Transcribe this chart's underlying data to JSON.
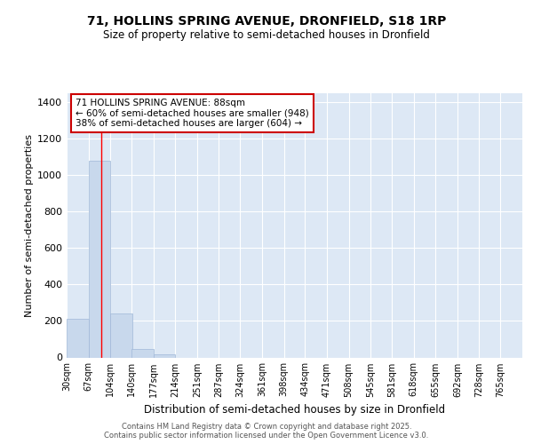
{
  "title1": "71, HOLLINS SPRING AVENUE, DRONFIELD, S18 1RP",
  "title2": "Size of property relative to semi-detached houses in Dronfield",
  "xlabel": "Distribution of semi-detached houses by size in Dronfield",
  "ylabel": "Number of semi-detached properties",
  "bin_labels": [
    "30sqm",
    "67sqm",
    "104sqm",
    "140sqm",
    "177sqm",
    "214sqm",
    "251sqm",
    "287sqm",
    "324sqm",
    "361sqm",
    "398sqm",
    "434sqm",
    "471sqm",
    "508sqm",
    "545sqm",
    "581sqm",
    "618sqm",
    "655sqm",
    "692sqm",
    "728sqm",
    "765sqm"
  ],
  "bin_edges": [
    30,
    67,
    104,
    140,
    177,
    214,
    251,
    287,
    324,
    361,
    398,
    434,
    471,
    508,
    545,
    581,
    618,
    655,
    692,
    728,
    765
  ],
  "values": [
    210,
    1080,
    240,
    45,
    15,
    0,
    0,
    0,
    0,
    0,
    0,
    0,
    0,
    0,
    0,
    0,
    0,
    0,
    0,
    0
  ],
  "bar_color": "#c8d8ec",
  "bar_edge_color": "#a0b8d8",
  "background_color": "#dde8f5",
  "red_line_x": 88,
  "annotation_title": "71 HOLLINS SPRING AVENUE: 88sqm",
  "annotation_line1": "← 60% of semi-detached houses are smaller (948)",
  "annotation_line2": "38% of semi-detached houses are larger (604) →",
  "annotation_box_color": "#cc0000",
  "ylim": [
    0,
    1450
  ],
  "yticks": [
    0,
    200,
    400,
    600,
    800,
    1000,
    1200,
    1400
  ],
  "footer1": "Contains HM Land Registry data © Crown copyright and database right 2025.",
  "footer2": "Contains public sector information licensed under the Open Government Licence v3.0."
}
